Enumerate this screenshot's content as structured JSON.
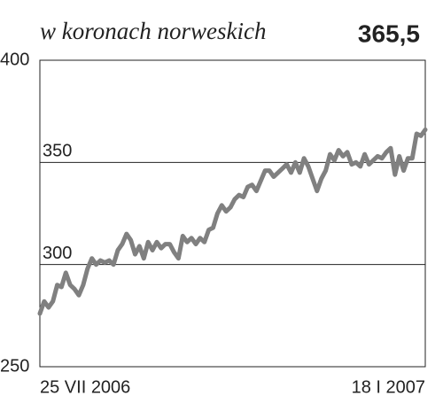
{
  "chart_data": {
    "type": "line",
    "title": "w koronach norweskich",
    "headline": "365,5",
    "categories": [
      "25 VII 2006",
      null,
      null,
      null,
      null,
      null,
      null,
      null,
      null,
      null,
      null,
      null,
      null,
      null,
      null,
      null,
      null,
      null,
      null,
      null,
      null,
      null,
      null,
      null,
      null,
      null,
      null,
      null,
      null,
      null,
      null,
      null,
      null,
      null,
      null,
      null,
      null,
      null,
      null,
      null,
      null,
      null,
      null,
      null,
      null,
      null,
      null,
      null,
      null,
      null,
      null,
      null,
      null,
      null,
      null,
      null,
      null,
      null,
      null,
      null,
      null,
      null,
      null,
      null,
      null,
      null,
      null,
      null,
      null,
      null,
      null,
      null,
      null,
      null,
      null,
      null,
      null,
      null,
      null,
      null,
      null,
      null,
      null,
      null,
      null,
      null,
      null,
      null,
      null,
      "18 I 2007"
    ],
    "series": [
      {
        "color": "#808080",
        "values": [
          276,
          282,
          279,
          282,
          290,
          289,
          296,
          290,
          288,
          285,
          290,
          298,
          303,
          300,
          302,
          301,
          302,
          300,
          307,
          310,
          315,
          312,
          305,
          309,
          303,
          311,
          307,
          311,
          308,
          310,
          310,
          306,
          303,
          314,
          311,
          313,
          310,
          313,
          311,
          317,
          318,
          325,
          329,
          326,
          328,
          332,
          334,
          333,
          338,
          339,
          336,
          341,
          346,
          346,
          343,
          345,
          347,
          349,
          345,
          350,
          345,
          352,
          348,
          342,
          336,
          342,
          346,
          354,
          351,
          356,
          353,
          355,
          349,
          350,
          348,
          354,
          349,
          351,
          353,
          352,
          355,
          357,
          344,
          353,
          346,
          352,
          352,
          364,
          363,
          366
        ]
      }
    ],
    "ylim": [
      250,
      400
    ],
    "yticks": [
      250,
      300,
      350,
      400
    ],
    "grid": true
  }
}
